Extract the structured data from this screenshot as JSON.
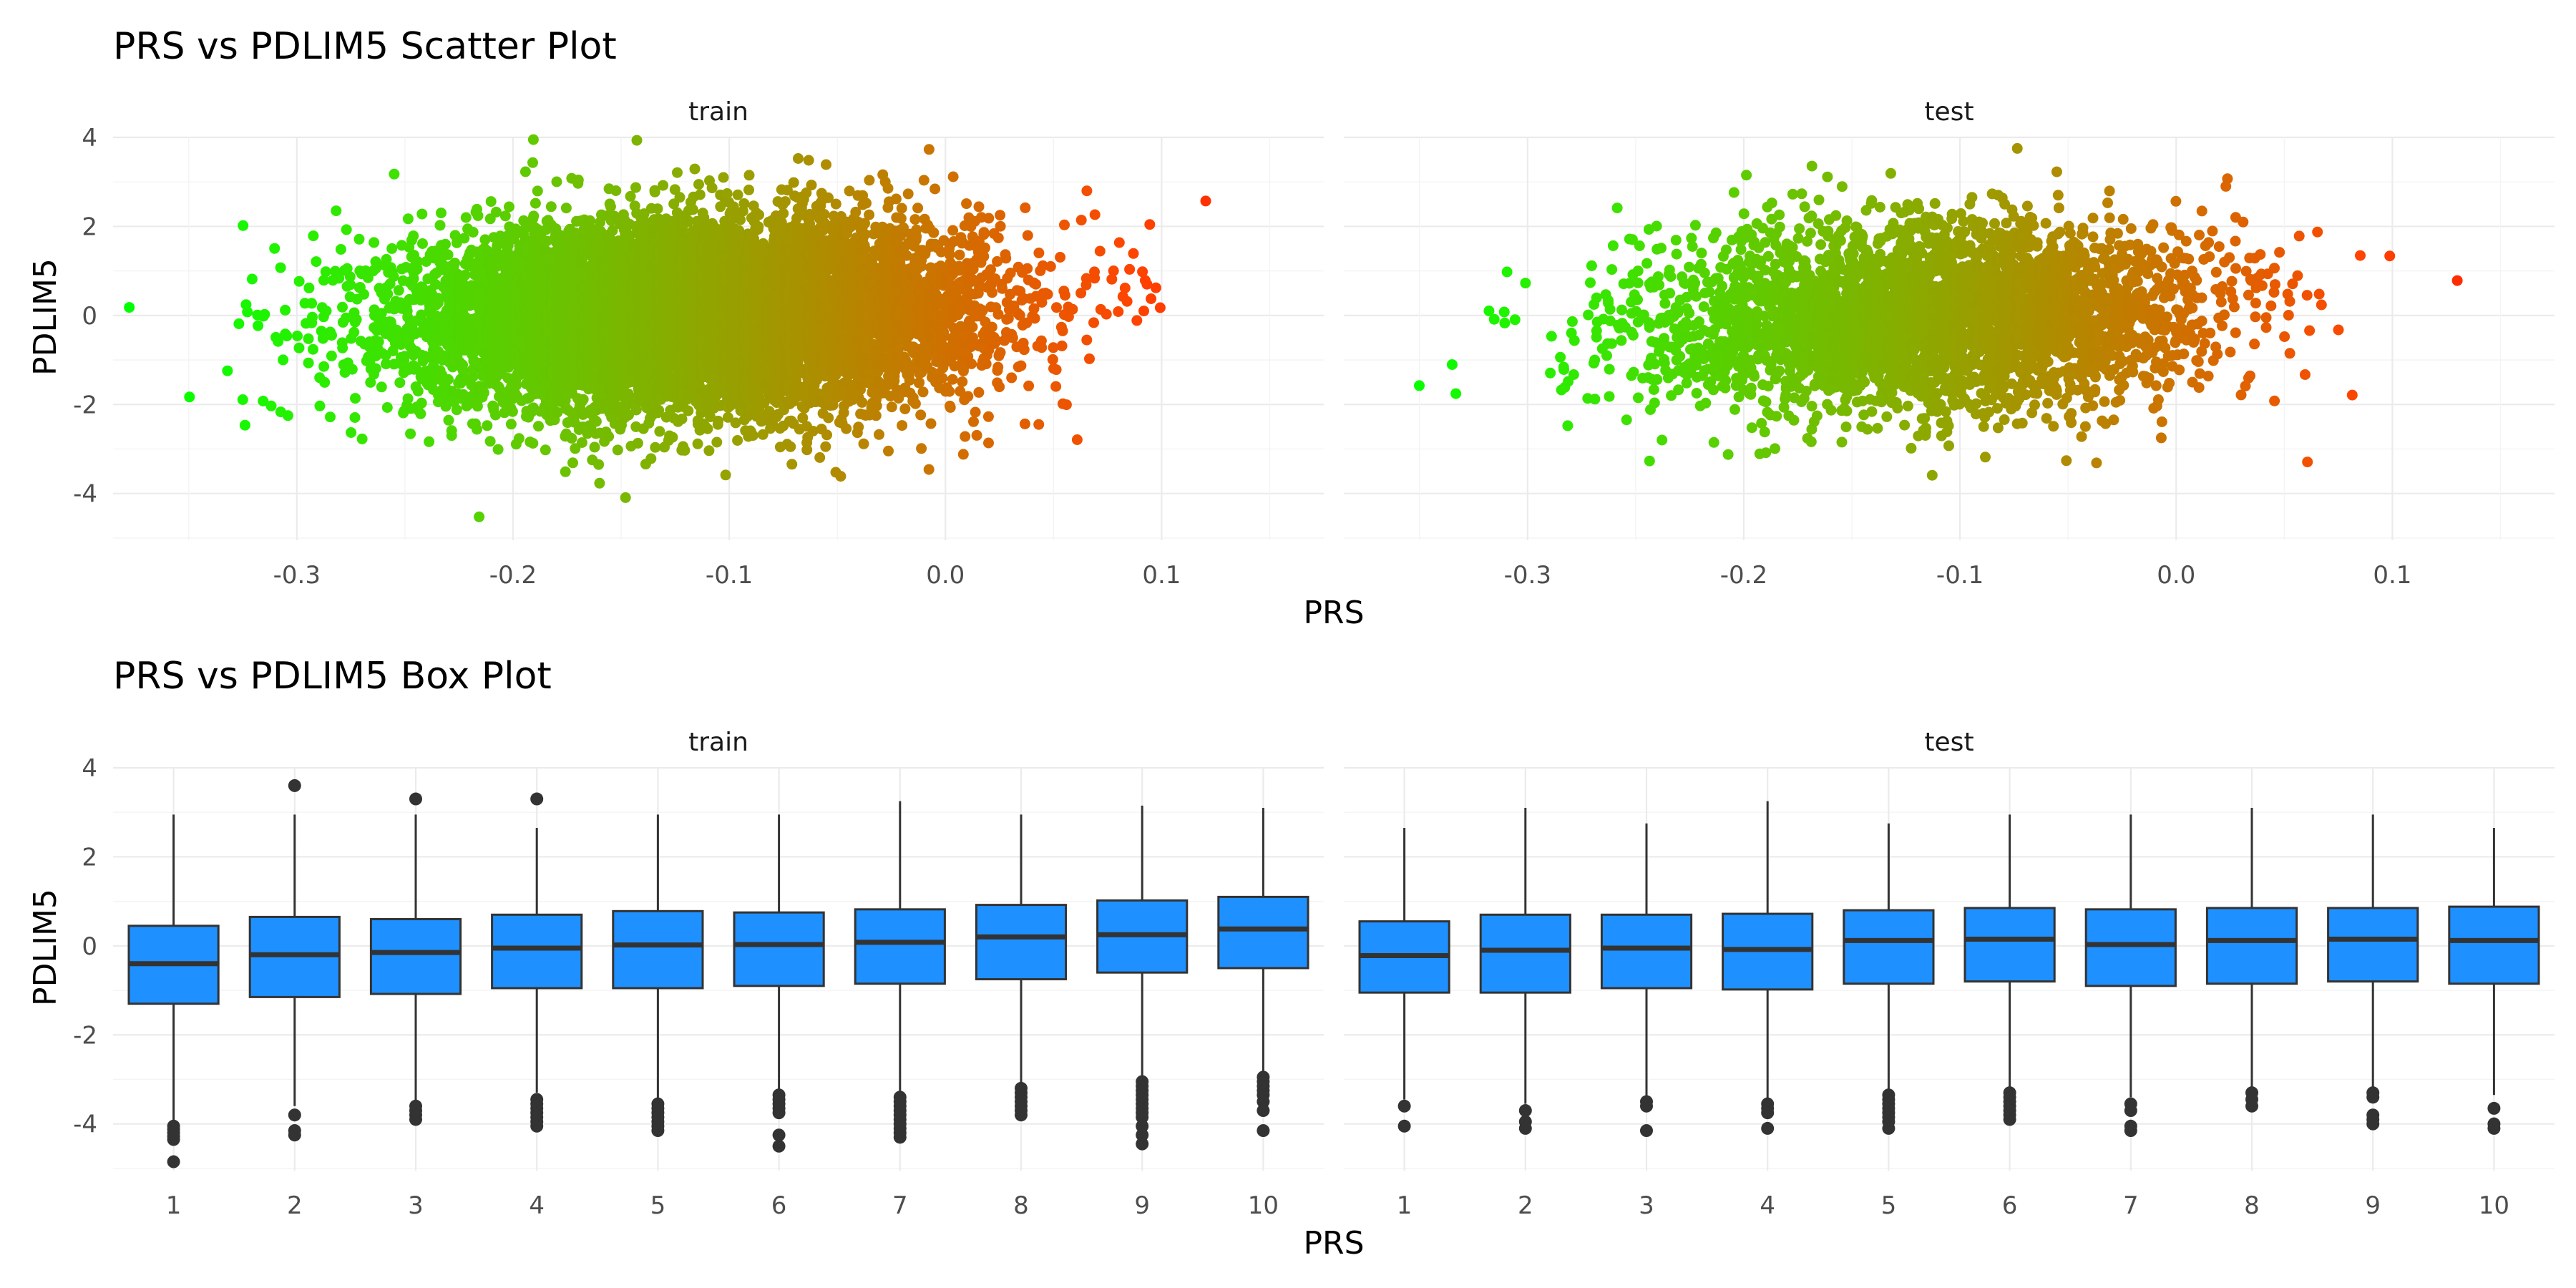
{
  "chart_data": [
    {
      "type": "scatter",
      "title": "PRS vs PDLIM5 Scatter Plot",
      "xlabel": "PRS",
      "ylabel": "PDLIM5",
      "facets": [
        "train",
        "test"
      ],
      "xlim": [
        -0.385,
        0.175
      ],
      "ylim": [
        -5.05,
        4.0
      ],
      "x_ticks": [
        -0.3,
        -0.2,
        -0.1,
        0.0,
        0.1
      ],
      "x_tick_labels": [
        "-0.3",
        "-0.2",
        "-0.1",
        "0.0",
        "0.1"
      ],
      "y_ticks": [
        -4,
        -2,
        0,
        2,
        4
      ],
      "y_tick_labels": [
        "-4",
        "-2",
        "0",
        "2",
        "4"
      ],
      "color_scale": {
        "low": "#00ff00",
        "high": "#ff0000",
        "mapped_to": "PRS"
      },
      "distribution": {
        "train": {
          "x_mean": -0.115,
          "x_sd": 0.065,
          "y_mean": 0.0,
          "y_sd": 1.05,
          "points": 9000
        },
        "test": {
          "x_mean": -0.115,
          "x_sd": 0.065,
          "y_mean": 0.0,
          "y_sd": 1.05,
          "points": 3600
        }
      },
      "grid": true,
      "legend": "none"
    },
    {
      "type": "box",
      "title": "PRS vs PDLIM5 Box Plot",
      "xlabel": "PRS",
      "ylabel": "PDLIM5",
      "facets": [
        "train",
        "test"
      ],
      "categories": [
        "1",
        "2",
        "3",
        "4",
        "5",
        "6",
        "7",
        "8",
        "9",
        "10"
      ],
      "ylim": [
        -5.05,
        4.0
      ],
      "y_ticks": [
        -4,
        -2,
        0,
        2,
        4
      ],
      "y_tick_labels": [
        "-4",
        "-2",
        "0",
        "2",
        "4"
      ],
      "fill": "#1e90ff",
      "boxes": {
        "train": [
          {
            "q1": -1.3,
            "median": -0.4,
            "q3": 0.45,
            "lower": -3.95,
            "upper": 2.95,
            "outliers": [
              -4.05,
              -4.12,
              -4.2,
              -4.28,
              -4.35,
              -4.85
            ]
          },
          {
            "q1": -1.15,
            "median": -0.2,
            "q3": 0.65,
            "lower": -3.6,
            "upper": 2.95,
            "outliers": [
              3.6,
              -3.8,
              -4.15,
              -4.25
            ]
          },
          {
            "q1": -1.08,
            "median": -0.15,
            "q3": 0.6,
            "lower": -3.5,
            "upper": 2.95,
            "outliers": [
              3.3,
              -3.6,
              -3.7,
              -3.8,
              -3.9
            ]
          },
          {
            "q1": -0.95,
            "median": -0.05,
            "q3": 0.7,
            "lower": -3.3,
            "upper": 2.65,
            "outliers": [
              3.3,
              -3.45,
              -3.55,
              -3.65,
              -3.75,
              -3.85,
              -3.95,
              -4.05
            ]
          },
          {
            "q1": -0.95,
            "median": 0.02,
            "q3": 0.78,
            "lower": -3.45,
            "upper": 2.95,
            "outliers": [
              -3.55,
              -3.65,
              -3.75,
              -3.85,
              -3.95,
              -4.05,
              -4.15
            ]
          },
          {
            "q1": -0.9,
            "median": 0.03,
            "q3": 0.75,
            "lower": -3.3,
            "upper": 2.95,
            "outliers": [
              -3.35,
              -3.45,
              -3.55,
              -3.65,
              -3.75,
              -4.25,
              -4.5
            ]
          },
          {
            "q1": -0.85,
            "median": 0.08,
            "q3": 0.82,
            "lower": -3.3,
            "upper": 3.25,
            "outliers": [
              -3.4,
              -3.5,
              -3.6,
              -3.7,
              -3.8,
              -3.9,
              -4.0,
              -4.1,
              -4.2,
              -4.3
            ]
          },
          {
            "q1": -0.75,
            "median": 0.2,
            "q3": 0.92,
            "lower": -3.15,
            "upper": 2.95,
            "outliers": [
              -3.2,
              -3.3,
              -3.4,
              -3.5,
              -3.6,
              -3.7,
              -3.8
            ]
          },
          {
            "q1": -0.6,
            "median": 0.25,
            "q3": 1.02,
            "lower": -2.95,
            "upper": 3.15,
            "outliers": [
              -3.05,
              -3.15,
              -3.25,
              -3.35,
              -3.45,
              -3.55,
              -3.65,
              -3.75,
              -3.85,
              -4.05,
              -4.25,
              -4.45
            ]
          },
          {
            "q1": -0.5,
            "median": 0.38,
            "q3": 1.1,
            "lower": -2.85,
            "upper": 3.1,
            "outliers": [
              -2.95,
              -3.05,
              -3.15,
              -3.25,
              -3.35,
              -3.5,
              -3.7,
              -4.15
            ]
          }
        ],
        "test": [
          {
            "q1": -1.05,
            "median": -0.22,
            "q3": 0.55,
            "lower": -3.45,
            "upper": 2.65,
            "outliers": [
              -3.6,
              -4.05
            ]
          },
          {
            "q1": -1.05,
            "median": -0.1,
            "q3": 0.7,
            "lower": -3.55,
            "upper": 3.1,
            "outliers": [
              -3.7,
              -3.95,
              -4.1
            ]
          },
          {
            "q1": -0.95,
            "median": -0.05,
            "q3": 0.7,
            "lower": -3.4,
            "upper": 2.75,
            "outliers": [
              -3.5,
              -3.6,
              -4.15
            ]
          },
          {
            "q1": -0.98,
            "median": -0.08,
            "q3": 0.72,
            "lower": -3.45,
            "upper": 3.25,
            "outliers": [
              -3.55,
              -3.65,
              -3.75,
              -4.1
            ]
          },
          {
            "q1": -0.85,
            "median": 0.12,
            "q3": 0.8,
            "lower": -3.25,
            "upper": 2.75,
            "outliers": [
              -3.35,
              -3.45,
              -3.55,
              -3.65,
              -3.75,
              -3.85,
              -3.95,
              -4.1
            ]
          },
          {
            "q1": -0.8,
            "median": 0.15,
            "q3": 0.85,
            "lower": -3.2,
            "upper": 2.95,
            "outliers": [
              -3.3,
              -3.4,
              -3.5,
              -3.6,
              -3.7,
              -3.8,
              -3.9
            ]
          },
          {
            "q1": -0.9,
            "median": 0.03,
            "q3": 0.82,
            "lower": -3.4,
            "upper": 2.95,
            "outliers": [
              -3.55,
              -3.7,
              -4.05,
              -4.15
            ]
          },
          {
            "q1": -0.85,
            "median": 0.12,
            "q3": 0.85,
            "lower": -3.2,
            "upper": 3.1,
            "outliers": [
              -3.3,
              -3.45,
              -3.6
            ]
          },
          {
            "q1": -0.8,
            "median": 0.15,
            "q3": 0.85,
            "lower": -3.2,
            "upper": 2.95,
            "outliers": [
              -3.3,
              -3.4,
              -3.8,
              -3.9,
              -4.0
            ]
          },
          {
            "q1": -0.85,
            "median": 0.12,
            "q3": 0.88,
            "lower": -3.35,
            "upper": 2.65,
            "outliers": [
              -3.65,
              -4.0,
              -4.1
            ]
          }
        ]
      },
      "grid": true,
      "legend": "none"
    }
  ]
}
